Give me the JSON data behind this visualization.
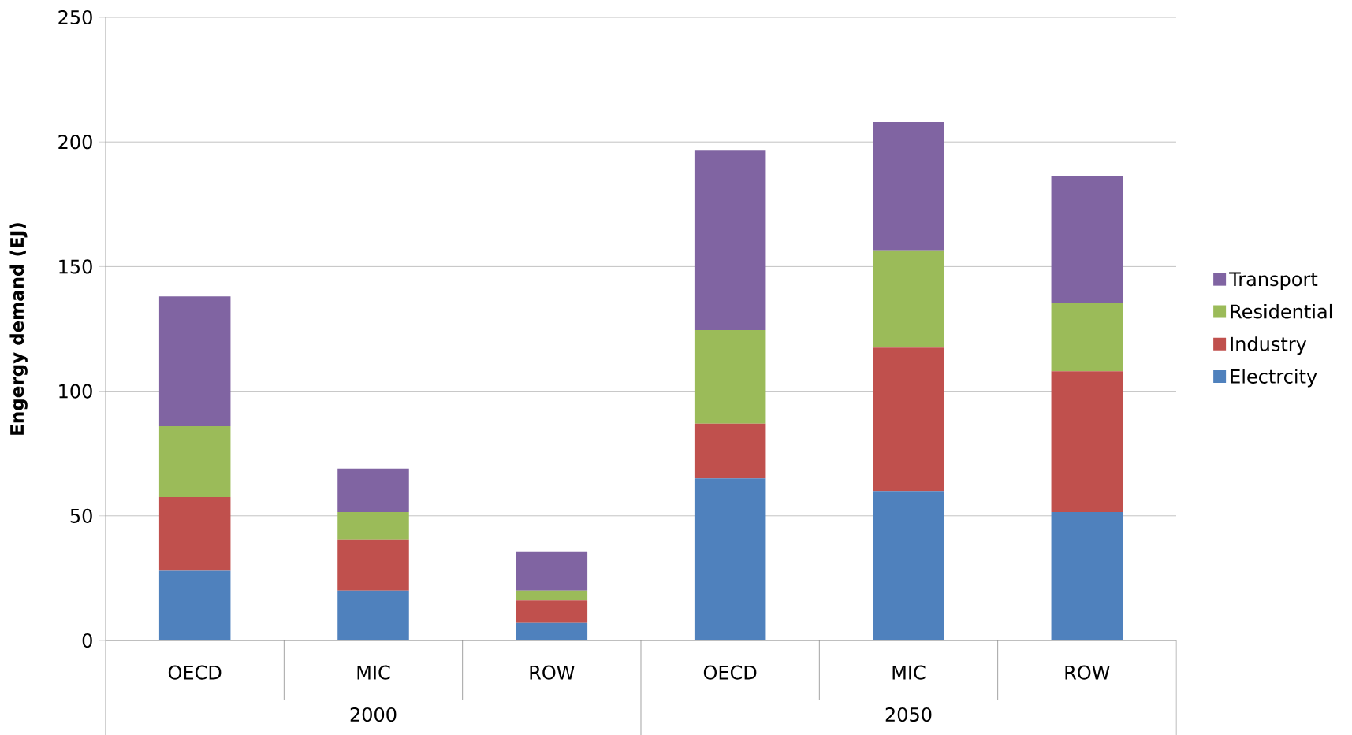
{
  "chart_data": {
    "type": "bar",
    "stacked": true,
    "ylabel": "**Engergy demand (EJ)**",
    "categories": [
      "OECD",
      "MIC",
      "ROW",
      "OECD",
      "MIC",
      "ROW"
    ],
    "annotations": [
      "2000",
      "2050"
    ],
    "series": [
      {
        "name": "Electrcity",
        "color": "#4f81bd",
        "values": [
          28,
          20,
          7,
          65,
          60,
          51.5
        ]
      },
      {
        "name": "Industry",
        "color": "#c0504d",
        "values": [
          29.5,
          20.5,
          9,
          22,
          57.5,
          56.5
        ]
      },
      {
        "name": "Residential",
        "color": "#9bbb59",
        "values": [
          28.5,
          11,
          4,
          37.5,
          39,
          27.5
        ]
      },
      {
        "name": "Transport",
        "color": "#8064a2",
        "values": [
          52,
          17.5,
          15.5,
          72,
          51.5,
          51
        ]
      }
    ],
    "ylim": [
      0,
      250
    ],
    "yticks": [
      0,
      50,
      100,
      150,
      200,
      250
    ],
    "grid": "y",
    "legend": "right"
  }
}
